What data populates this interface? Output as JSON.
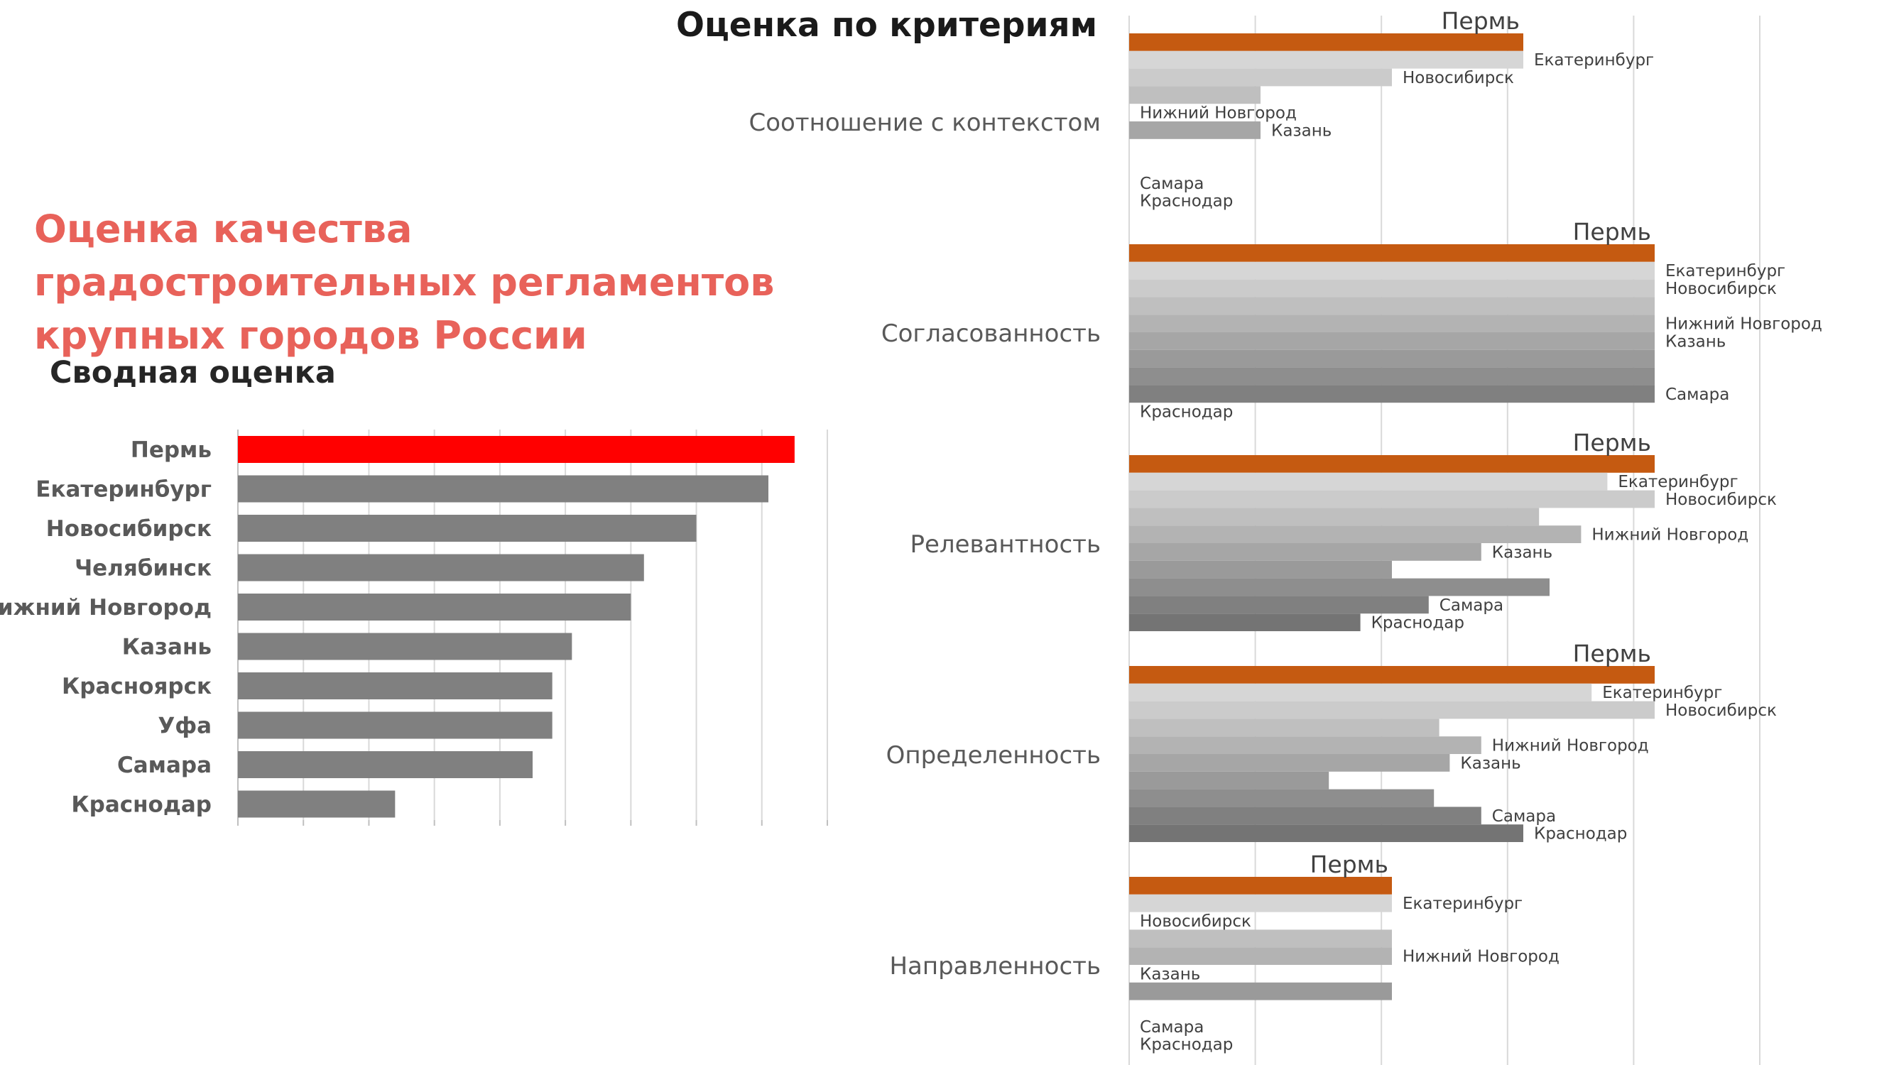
{
  "title": "Оценка качества градостроительных регламентов крупных городов России",
  "summary": {
    "title": "Сводная оценка",
    "chart_data": {
      "type": "bar",
      "orientation": "horizontal",
      "categories": [
        "Пермь",
        "Екатеринбург",
        "Новосибирск",
        "Челябинск",
        "Нижний Новгород",
        "Казань",
        "Красноярск",
        "Уфа",
        "Самара",
        "Краснодар"
      ],
      "values": [
        8.5,
        8.1,
        7.0,
        6.2,
        6.0,
        5.1,
        4.8,
        4.8,
        4.5,
        2.4
      ],
      "xlim": [
        0,
        9
      ],
      "grid": true,
      "colors": {
        "highlight": "#ff0000",
        "default": "#808080"
      }
    }
  },
  "criteria": {
    "title": "Оценка по критериям",
    "chart_data": [
      {
        "type": "bar",
        "name": "Соотношение с контекстом",
        "categories": [
          "Пермь",
          "Екатеринбург",
          "Новосибирск",
          "Челябинск",
          "Нижний Новгород",
          "Казань",
          "Красноярск",
          "Уфа",
          "Самара",
          "Краснодар"
        ],
        "values": [
          3.75,
          3.75,
          2.5,
          1.25,
          0,
          1.25,
          0,
          0,
          0,
          0
        ],
        "labels": [
          "Пермь",
          "Екатеринбург",
          "Новосибирск",
          "",
          "Нижний Новгород",
          "Казань",
          "",
          "",
          "Самара",
          "Краснодар"
        ]
      },
      {
        "type": "bar",
        "name": "Согласованность",
        "categories": [
          "Пермь",
          "Екатеринбург",
          "Новосибирск",
          "Челябинск",
          "Нижний Новгород",
          "Казань",
          "Красноярск",
          "Уфа",
          "Самара",
          "Краснодар"
        ],
        "values": [
          5,
          5,
          5,
          5,
          5,
          5,
          5,
          5,
          5,
          0
        ],
        "labels": [
          "Пермь",
          "Екатеринбург",
          "Новосибирск",
          "",
          "Нижний Новгород",
          "Казань",
          "",
          "",
          "Самара",
          "Краснодар"
        ]
      },
      {
        "type": "bar",
        "name": "Релевантность",
        "categories": [
          "Пермь",
          "Екатеринбург",
          "Новосибирск",
          "Челябинск",
          "Нижний Новгород",
          "Казань",
          "Красноярск",
          "Уфа",
          "Самара",
          "Краснодар"
        ],
        "values": [
          5,
          4.55,
          5,
          3.9,
          4.3,
          3.35,
          2.5,
          4.0,
          2.85,
          2.2
        ],
        "labels": [
          "Пермь",
          "Екатеринбург",
          "Новосибирск",
          "",
          "Нижний Новгород",
          "Казань",
          "",
          "",
          "Самара",
          "Краснодар"
        ]
      },
      {
        "type": "bar",
        "name": "Определенность",
        "categories": [
          "Пермь",
          "Екатеринбург",
          "Новосибирск",
          "Челябинск",
          "Нижний Новгород",
          "Казань",
          "Красноярск",
          "Уфа",
          "Самара",
          "Краснодар"
        ],
        "values": [
          5,
          4.4,
          5,
          2.95,
          3.35,
          3.05,
          1.9,
          2.9,
          3.35,
          3.75
        ],
        "labels": [
          "Пермь",
          "Екатеринбург",
          "Новосибирск",
          "",
          "Нижний Новгород",
          "Казань",
          "",
          "",
          "Самара",
          "Краснодар"
        ]
      },
      {
        "type": "bar",
        "name": "Направленность",
        "categories": [
          "Пермь",
          "Екатеринбург",
          "Новосибирск",
          "Челябинск",
          "Нижний Новгород",
          "Казань",
          "Красноярск",
          "Уфа",
          "Самара",
          "Краснодар"
        ],
        "values": [
          2.5,
          2.5,
          0,
          2.5,
          2.5,
          0,
          2.5,
          0,
          0,
          0
        ],
        "labels": [
          "Пермь",
          "Екатеринбург",
          "Новосибирск",
          "",
          "Нижний Новгород",
          "Казань",
          "",
          "",
          "Самара",
          "Краснодар"
        ]
      }
    ],
    "xlim": [
      0,
      6
    ],
    "grid": true,
    "colors": {
      "highlight": "#c55a11",
      "shades": [
        "#d6d6d6",
        "#cbcbcb",
        "#bfbfbf",
        "#b3b3b3",
        "#a6a6a6",
        "#9a9a9a",
        "#8e8e8e",
        "#808080",
        "#747474"
      ]
    }
  }
}
